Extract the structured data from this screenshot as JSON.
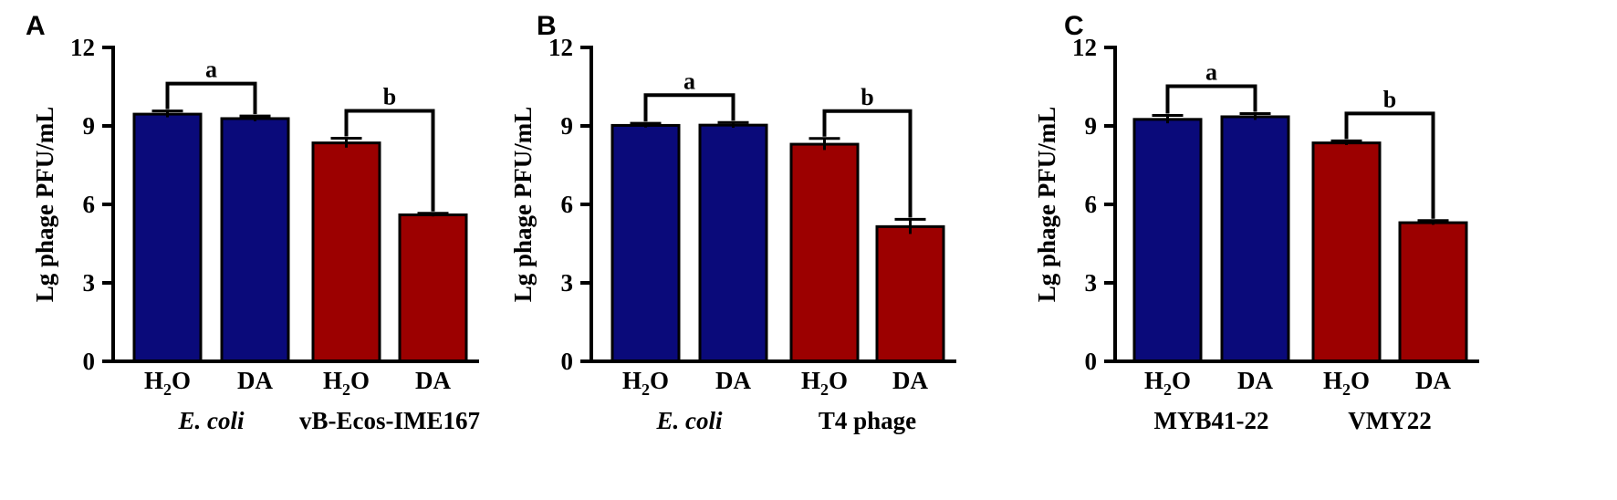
{
  "chart_data": [
    {
      "type": "bar",
      "panel": "A",
      "ylabel": "Lg phage PFU/mL",
      "ylim": [
        0,
        12
      ],
      "yticks": [
        0,
        3,
        6,
        9,
        12
      ],
      "categories": [
        "H2O",
        "DA",
        "H2O",
        "DA"
      ],
      "groups": [
        {
          "label": "E. coli",
          "italic": true
        },
        {
          "label": "vB-Ecos-IME167",
          "italic": false
        }
      ],
      "values": [
        9.45,
        9.28,
        8.35,
        5.6
      ],
      "errors": [
        0.12,
        0.1,
        0.18,
        0.06
      ],
      "colors": [
        "#0a0a7a",
        "#0a0a7a",
        "#9c0000",
        "#9c0000"
      ],
      "significance": [
        {
          "label": "a",
          "bars": [
            0,
            1
          ]
        },
        {
          "label": "b",
          "bars": [
            2,
            3
          ]
        }
      ]
    },
    {
      "type": "bar",
      "panel": "B",
      "ylabel": "Lg phage PFU/mL",
      "ylim": [
        0,
        12
      ],
      "yticks": [
        0,
        3,
        6,
        9,
        12
      ],
      "categories": [
        "H2O",
        "DA",
        "H2O",
        "DA"
      ],
      "groups": [
        {
          "label": "E. coli",
          "italic": true
        },
        {
          "label": "T4 phage",
          "italic": false
        }
      ],
      "values": [
        9.02,
        9.03,
        8.3,
        5.15
      ],
      "errors": [
        0.08,
        0.1,
        0.22,
        0.28
      ],
      "colors": [
        "#0a0a7a",
        "#0a0a7a",
        "#9c0000",
        "#9c0000"
      ],
      "significance": [
        {
          "label": "a",
          "bars": [
            0,
            1
          ]
        },
        {
          "label": "b",
          "bars": [
            2,
            3
          ]
        }
      ]
    },
    {
      "type": "bar",
      "panel": "C",
      "ylabel": "Lg phage PFU/mL",
      "ylim": [
        0,
        12
      ],
      "yticks": [
        0,
        3,
        6,
        9,
        12
      ],
      "categories": [
        "H2O",
        "DA",
        "H2O",
        "DA"
      ],
      "groups": [
        {
          "label": "MYB41-22",
          "italic": false
        },
        {
          "label": "VMY22",
          "italic": false
        }
      ],
      "values": [
        9.25,
        9.35,
        8.35,
        5.3
      ],
      "errors": [
        0.15,
        0.12,
        0.08,
        0.08
      ],
      "colors": [
        "#0a0a7a",
        "#0a0a7a",
        "#9c0000",
        "#9c0000"
      ],
      "significance": [
        {
          "label": "a",
          "bars": [
            0,
            1
          ]
        },
        {
          "label": "b",
          "bars": [
            2,
            3
          ]
        }
      ]
    }
  ]
}
